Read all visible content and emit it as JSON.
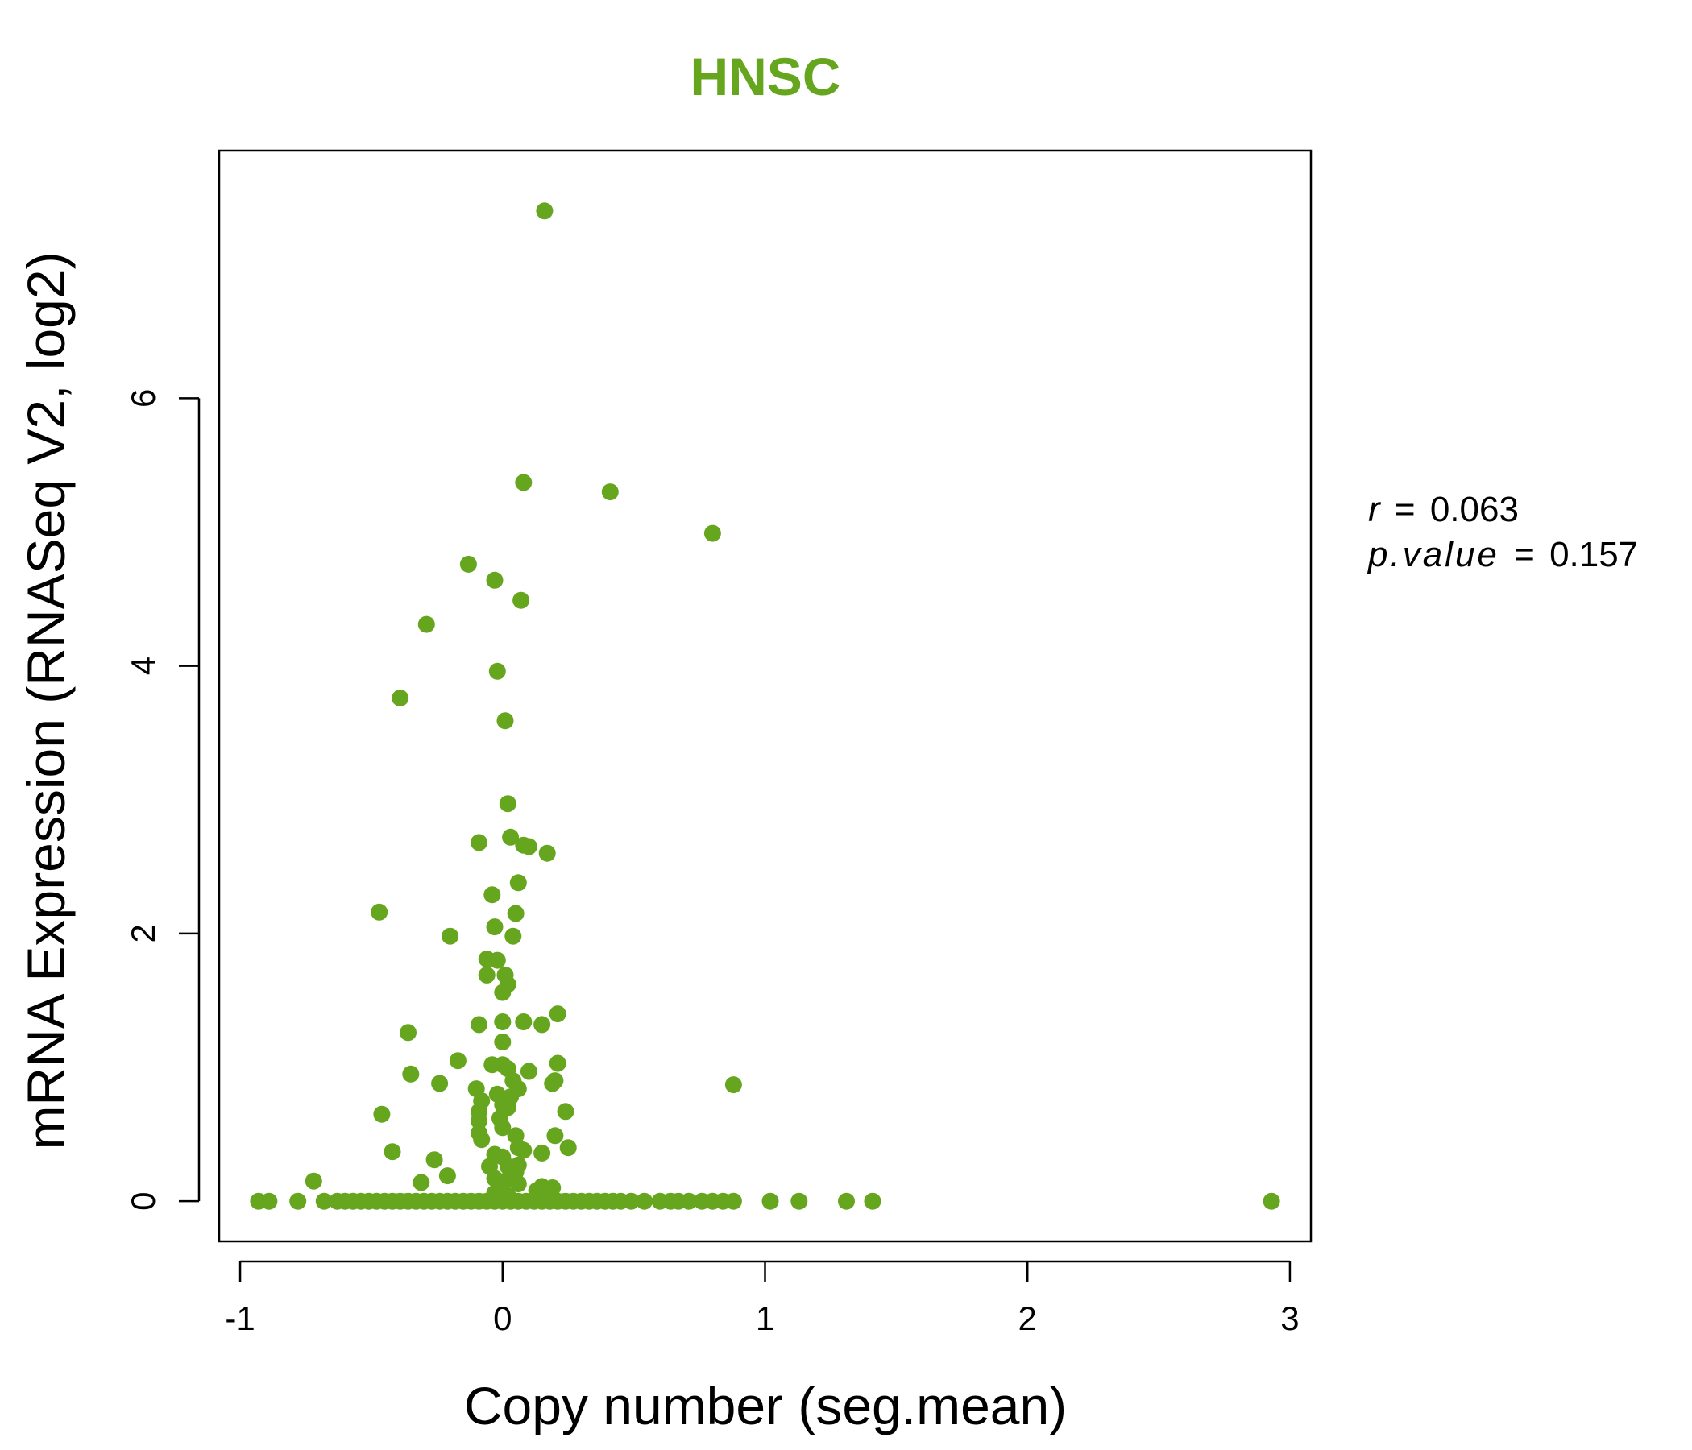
{
  "colors": {
    "point": "#66a61e",
    "title": "#66a61e",
    "axis": "#000000"
  },
  "stats": {
    "r_label": "r",
    "r_value": "0.063",
    "p_label": "p.value",
    "p_value": "0.157",
    "equals": "="
  },
  "chart_data": {
    "type": "scatter",
    "title": "HNSC",
    "xlabel": "Copy number (seg.mean)",
    "ylabel": "mRNA Expression (RNASeq V2, log2)",
    "xlim": [
      -1.08,
      3.08
    ],
    "ylim": [
      -0.3,
      7.85
    ],
    "x_ticks": [
      -1,
      0,
      1,
      2,
      3
    ],
    "x_tick_labels": [
      "-1",
      "0",
      "1",
      "2",
      "3"
    ],
    "y_ticks": [
      0,
      2,
      4,
      6
    ],
    "y_tick_labels": [
      "0",
      "2",
      "4",
      "6"
    ],
    "grid": false,
    "legend": "none",
    "series": [
      {
        "points": [
          [
            0.16,
            7.4
          ],
          [
            0.08,
            5.37
          ],
          [
            0.41,
            5.3
          ],
          [
            0.8,
            4.99
          ],
          [
            -0.13,
            4.76
          ],
          [
            -0.03,
            4.64
          ],
          [
            0.07,
            4.49
          ],
          [
            -0.29,
            4.31
          ],
          [
            -0.02,
            3.96
          ],
          [
            -0.39,
            3.76
          ],
          [
            0.01,
            3.59
          ],
          [
            0.02,
            2.97
          ],
          [
            0.03,
            2.72
          ],
          [
            -0.09,
            2.68
          ],
          [
            0.08,
            2.66
          ],
          [
            0.1,
            2.65
          ],
          [
            0.17,
            2.6
          ],
          [
            0.06,
            2.38
          ],
          [
            -0.04,
            2.29
          ],
          [
            -0.47,
            2.16
          ],
          [
            0.05,
            2.15
          ],
          [
            -0.03,
            2.05
          ],
          [
            -0.2,
            1.98
          ],
          [
            0.04,
            1.98
          ],
          [
            -0.06,
            1.81
          ],
          [
            -0.02,
            1.8
          ],
          [
            -0.06,
            1.69
          ],
          [
            0.01,
            1.69
          ],
          [
            0.02,
            1.62
          ],
          [
            0.0,
            1.56
          ],
          [
            0.21,
            1.4
          ],
          [
            0.0,
            1.34
          ],
          [
            0.08,
            1.34
          ],
          [
            0.15,
            1.32
          ],
          [
            -0.09,
            1.32
          ],
          [
            -0.36,
            1.26
          ],
          [
            0.0,
            1.19
          ],
          [
            -0.17,
            1.05
          ],
          [
            0.21,
            1.03
          ],
          [
            -0.04,
            1.02
          ],
          [
            0.0,
            1.02
          ],
          [
            0.02,
            0.99
          ],
          [
            0.1,
            0.97
          ],
          [
            -0.35,
            0.95
          ],
          [
            0.04,
            0.9
          ],
          [
            0.19,
            0.88
          ],
          [
            -0.24,
            0.88
          ],
          [
            0.88,
            0.87
          ],
          [
            0.2,
            0.9
          ],
          [
            -0.1,
            0.84
          ],
          [
            0.06,
            0.84
          ],
          [
            -0.02,
            0.8
          ],
          [
            0.03,
            0.78
          ],
          [
            -0.08,
            0.75
          ],
          [
            0.0,
            0.72
          ],
          [
            0.02,
            0.7
          ],
          [
            0.24,
            0.67
          ],
          [
            -0.09,
            0.67
          ],
          [
            -0.46,
            0.65
          ],
          [
            -0.01,
            0.62
          ],
          [
            -0.09,
            0.6
          ],
          [
            0.0,
            0.55
          ],
          [
            0.05,
            0.49
          ],
          [
            -0.09,
            0.51
          ],
          [
            0.2,
            0.49
          ],
          [
            -0.08,
            0.46
          ],
          [
            0.06,
            0.4
          ],
          [
            0.25,
            0.4
          ],
          [
            -0.42,
            0.37
          ],
          [
            0.15,
            0.36
          ],
          [
            0.08,
            0.38
          ],
          [
            -0.03,
            0.35
          ],
          [
            0.0,
            0.33
          ],
          [
            -0.26,
            0.31
          ],
          [
            0.06,
            0.27
          ],
          [
            -0.05,
            0.26
          ],
          [
            0.02,
            0.26
          ],
          [
            0.05,
            0.22
          ],
          [
            -0.21,
            0.19
          ],
          [
            -0.03,
            0.17
          ],
          [
            0.01,
            0.15
          ],
          [
            -0.31,
            0.14
          ],
          [
            -0.72,
            0.15
          ],
          [
            0.06,
            0.13
          ],
          [
            0.15,
            0.11
          ],
          [
            0.19,
            0.1
          ],
          [
            0.13,
            0.08
          ],
          [
            -0.03,
            0.06
          ],
          [
            0.0,
            0.05
          ],
          [
            0.02,
            0.04
          ],
          [
            -0.93,
            0
          ],
          [
            -0.89,
            0
          ],
          [
            -0.78,
            0
          ],
          [
            -0.68,
            0
          ],
          [
            -0.63,
            0
          ],
          [
            -0.6,
            0
          ],
          [
            -0.57,
            0
          ],
          [
            -0.54,
            0
          ],
          [
            -0.51,
            0
          ],
          [
            -0.48,
            0
          ],
          [
            -0.45,
            0
          ],
          [
            -0.42,
            0
          ],
          [
            -0.39,
            0
          ],
          [
            -0.36,
            0
          ],
          [
            -0.33,
            0
          ],
          [
            -0.3,
            0
          ],
          [
            -0.27,
            0
          ],
          [
            -0.24,
            0
          ],
          [
            -0.21,
            0
          ],
          [
            -0.18,
            0
          ],
          [
            -0.15,
            0
          ],
          [
            -0.12,
            0
          ],
          [
            -0.09,
            0
          ],
          [
            -0.06,
            0
          ],
          [
            -0.03,
            0
          ],
          [
            0.0,
            0
          ],
          [
            0.03,
            0
          ],
          [
            0.06,
            0
          ],
          [
            0.09,
            0
          ],
          [
            0.12,
            0
          ],
          [
            0.15,
            0
          ],
          [
            0.18,
            0
          ],
          [
            0.21,
            0
          ],
          [
            0.24,
            0
          ],
          [
            0.27,
            0
          ],
          [
            0.3,
            0
          ],
          [
            0.33,
            0
          ],
          [
            0.36,
            0
          ],
          [
            0.39,
            0
          ],
          [
            0.42,
            0
          ],
          [
            0.45,
            0
          ],
          [
            0.49,
            0
          ],
          [
            0.54,
            0
          ],
          [
            0.6,
            0
          ],
          [
            0.64,
            0
          ],
          [
            0.67,
            0
          ],
          [
            0.71,
            0
          ],
          [
            0.76,
            0
          ],
          [
            0.8,
            0
          ],
          [
            0.84,
            0
          ],
          [
            0.88,
            0
          ],
          [
            1.02,
            0
          ],
          [
            1.13,
            0
          ],
          [
            1.31,
            0
          ],
          [
            1.41,
            0
          ],
          [
            2.93,
            0
          ]
        ]
      }
    ]
  }
}
